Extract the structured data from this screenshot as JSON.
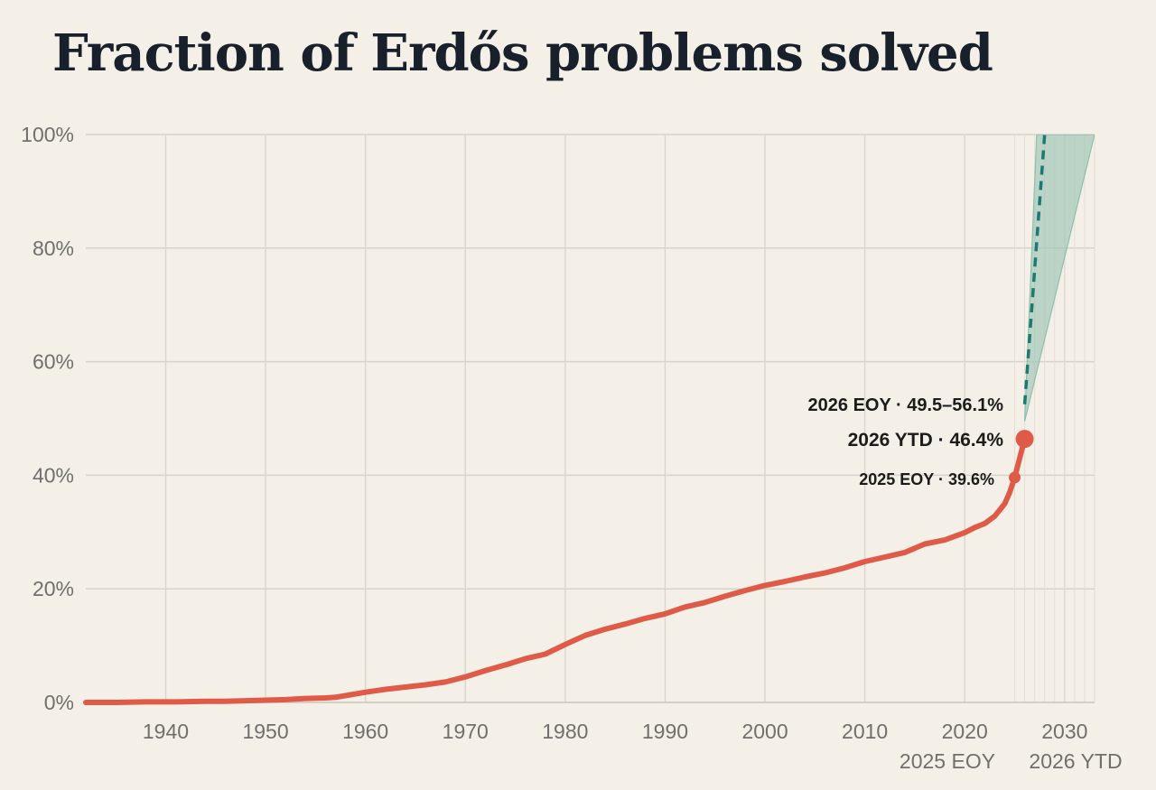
{
  "title": "Fraction of Erdős problems solved",
  "chart_data": {
    "type": "line",
    "title": "Fraction of Erdős problems solved",
    "xlabel": "",
    "ylabel": "",
    "xlim": [
      1932,
      2033
    ],
    "ylim": [
      0,
      100
    ],
    "y_ticks": [
      "0%",
      "20%",
      "40%",
      "60%",
      "80%",
      "100%"
    ],
    "y_tick_values": [
      0,
      20,
      40,
      60,
      80,
      100
    ],
    "x_ticks": [
      "1940",
      "1950",
      "1960",
      "1970",
      "1980",
      "1990",
      "2000",
      "2010",
      "2020",
      "2030"
    ],
    "x_tick_values": [
      1940,
      1950,
      1960,
      1970,
      1980,
      1990,
      2000,
      2010,
      2020,
      2030
    ],
    "x_secondary_labels": [
      "2025 EOY",
      "2026 YTD"
    ],
    "grid": true,
    "colors": {
      "line": "#e05a48",
      "projection": "#1c7a70",
      "band": "#9cc5b6"
    },
    "series": [
      {
        "x": [
          1932,
          1935,
          1938,
          1941,
          1944,
          1946,
          1948,
          1950,
          1952,
          1954,
          1956,
          1957,
          1958,
          1960,
          1962,
          1964,
          1966,
          1968,
          1970,
          1972,
          1974,
          1976,
          1978,
          1980,
          1982,
          1984,
          1986,
          1988,
          1990,
          1992,
          1994,
          1996,
          1998,
          2000,
          2002,
          2004,
          2006,
          2008,
          2010,
          2012,
          2014,
          2016,
          2018,
          2020,
          2021,
          2022,
          2023,
          2024,
          2024.5,
          2025,
          2026
        ],
        "values": [
          0,
          0,
          0.1,
          0.1,
          0.2,
          0.2,
          0.3,
          0.4,
          0.5,
          0.7,
          0.8,
          0.9,
          1.2,
          1.8,
          2.3,
          2.7,
          3.1,
          3.6,
          4.5,
          5.6,
          6.6,
          7.7,
          8.5,
          10.2,
          11.8,
          12.9,
          13.8,
          14.8,
          15.6,
          16.8,
          17.6,
          18.7,
          19.7,
          20.6,
          21.3,
          22.1,
          22.8,
          23.7,
          24.8,
          25.6,
          26.4,
          27.9,
          28.6,
          29.9,
          30.8,
          31.5,
          32.8,
          35.0,
          37.0,
          39.6,
          46.4
        ]
      }
    ],
    "points": [
      {
        "label": "2025 EOY · 39.6%",
        "x": 2025,
        "y": 39.6
      },
      {
        "label": "2026 YTD · 46.4%",
        "x": 2026,
        "y": 46.4
      }
    ],
    "projection": {
      "label": "2026 EOY · 49.5–56.1%",
      "dashed_line": {
        "x": [
          2026,
          2028
        ],
        "y": [
          52.5,
          100
        ]
      },
      "band": {
        "x": [
          2026,
          2027.2,
          2033
        ],
        "y_low": [
          49.5,
          100,
          100
        ],
        "y_high": [
          49.5,
          100,
          100
        ],
        "lower_edge": {
          "x": [
            2026,
            2033
          ],
          "y": [
            49.5,
            100
          ]
        },
        "upper_edge": {
          "x": [
            2026,
            2027.2
          ],
          "y": [
            49.5,
            100
          ]
        }
      }
    }
  }
}
